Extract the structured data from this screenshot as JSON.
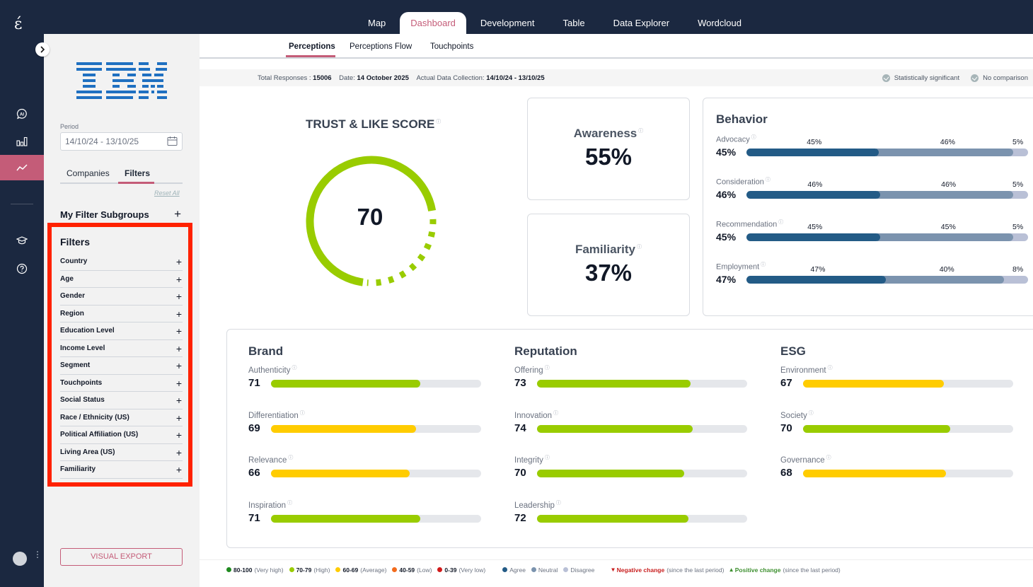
{
  "app": {
    "logo_glyph": "ɛ́",
    "brand": "IBM"
  },
  "top_nav": {
    "tabs": [
      {
        "label": "Map",
        "active": false
      },
      {
        "label": "Dashboard",
        "active": true
      },
      {
        "label": "Development",
        "active": false
      },
      {
        "label": "Table",
        "active": false
      },
      {
        "label": "Data Explorer",
        "active": false
      },
      {
        "label": "Wordcloud",
        "active": false
      }
    ]
  },
  "rail": {
    "items": [
      {
        "icon": "ai-chat-icon",
        "active": false
      },
      {
        "icon": "bar-chart-icon",
        "active": false
      },
      {
        "icon": "trend-line-icon",
        "active": true
      },
      {
        "icon": "graduation-cap-icon",
        "active": false
      },
      {
        "icon": "help-circle-icon",
        "active": false
      }
    ],
    "avatar_menu_glyph": "⋮"
  },
  "panel": {
    "period_label": "Period",
    "period_value": "14/10/24 - 13/10/25",
    "tabs": [
      {
        "label": "Companies",
        "active": false
      },
      {
        "label": "Filters",
        "active": true
      }
    ],
    "reset_all": "Reset All",
    "subgroups_title": "My Filter Subgroups",
    "plus_glyph": "+",
    "filters_title": "Filters",
    "filters": [
      "Country",
      "Age",
      "Gender",
      "Region",
      "Education Level",
      "Income Level",
      "Segment",
      "Touchpoints",
      "Social Status",
      "Race / Ethnicity (US)",
      "Political Affiliation (US)",
      "Living Area (US)",
      "Familiarity"
    ],
    "visual_export": "VISUAL EXPORT"
  },
  "sub_tabs": [
    {
      "label": "Perceptions",
      "active": true
    },
    {
      "label": "Perceptions Flow",
      "active": false
    },
    {
      "label": "Touchpoints",
      "active": false
    }
  ],
  "info": {
    "total_label": "Total Responses : ",
    "total_value": "15006",
    "date_label": "Date: ",
    "date_value": "14 October 2025",
    "collection_label": "Actual Data Collection: ",
    "collection_value": "14/10/24 - 13/10/25",
    "stat_sig": "Statistically significant",
    "no_comparison": "No comparison"
  },
  "trust": {
    "title": "TRUST & LIKE SCORE",
    "value": 70,
    "value_text": "70",
    "max": 100,
    "color": "#99cc00"
  },
  "kpis": {
    "awareness": {
      "label": "Awareness",
      "value": "55%"
    },
    "familiarity": {
      "label": "Familiarity",
      "value": "37%"
    }
  },
  "behavior": {
    "title": "Behavior",
    "colors": [
      "#235b86",
      "#7b93ae",
      "#b9c0d6"
    ],
    "rows": [
      {
        "label": "Advocacy",
        "value": "45%",
        "segments": [
          45,
          46,
          5
        ]
      },
      {
        "label": "Consideration",
        "value": "46%",
        "segments": [
          46,
          46,
          5
        ]
      },
      {
        "label": "Recommendation",
        "value": "45%",
        "segments": [
          45,
          45,
          5
        ]
      },
      {
        "label": "Employment",
        "value": "47%",
        "segments": [
          47,
          40,
          8
        ]
      }
    ]
  },
  "sections": [
    {
      "title": "Brand",
      "metrics": [
        {
          "label": "Authenticity",
          "value": 71
        },
        {
          "label": "Differentiation",
          "value": 69
        },
        {
          "label": "Relevance",
          "value": 66
        },
        {
          "label": "Inspiration",
          "value": 71
        }
      ]
    },
    {
      "title": "Reputation",
      "metrics": [
        {
          "label": "Offering",
          "value": 73
        },
        {
          "label": "Innovation",
          "value": 74
        },
        {
          "label": "Integrity",
          "value": 70
        },
        {
          "label": "Leadership",
          "value": 72
        }
      ]
    },
    {
      "title": "ESG",
      "metrics": [
        {
          "label": "Environment",
          "value": 67
        },
        {
          "label": "Society",
          "value": 70
        },
        {
          "label": "Governance",
          "value": 68
        }
      ]
    }
  ],
  "score_colors": {
    "very_high": "#1f8a1f",
    "high": "#99cc00",
    "average": "#ffcc00",
    "low": "#f26b1d",
    "very_low": "#d11a1a"
  },
  "legend": {
    "scores": [
      {
        "range": "80-100",
        "desc": "(Very high)",
        "color": "#1f8a1f"
      },
      {
        "range": "70-79",
        "desc": "(High)",
        "color": "#99cc00"
      },
      {
        "range": "60-69",
        "desc": "(Average)",
        "color": "#ffcc00"
      },
      {
        "range": "40-59",
        "desc": "(Low)",
        "color": "#f26b1d"
      },
      {
        "range": "0-39",
        "desc": "(Very low)",
        "color": "#d11a1a"
      }
    ],
    "agreement": [
      {
        "label": "Agree",
        "color": "#235b86"
      },
      {
        "label": "Neutral",
        "color": "#7b93ae"
      },
      {
        "label": "Disagree",
        "color": "#b9c0d6"
      }
    ],
    "negative": {
      "glyph": "▾",
      "label": "Negative change",
      "note": "(since the last period)"
    },
    "positive": {
      "glyph": "▴",
      "label": "Positive change",
      "note": "(since the last period)"
    }
  }
}
